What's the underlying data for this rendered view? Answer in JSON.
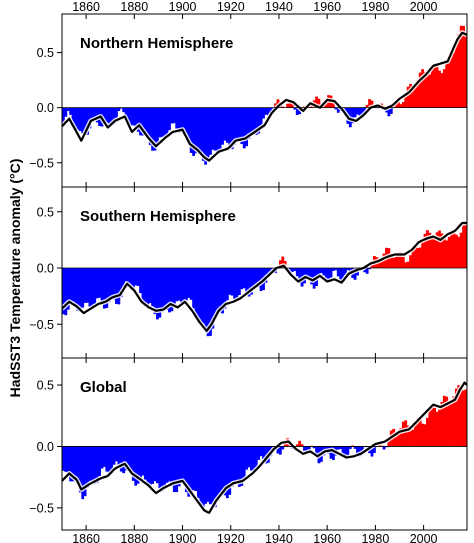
{
  "figure": {
    "y_axis_label": "HadSST3  Temperature anomaly (°C)",
    "colors": {
      "positive": "#ff0000",
      "negative": "#0000ff",
      "smoothed": "#000000",
      "uncertainty": "#ffffff"
    }
  },
  "chart_data": [
    {
      "type": "bar",
      "title": "Northern Hemisphere",
      "xlabel": "",
      "ylabel": "HadSST3  Temperature anomaly (°C)",
      "xlim": [
        1850,
        2018
      ],
      "ylim": [
        -0.72,
        0.85
      ],
      "x_ticks": [
        1860,
        1880,
        1900,
        1920,
        1940,
        1960,
        1980,
        2000
      ],
      "y_ticks": [
        -0.5,
        0.0,
        0.5
      ],
      "y_tick_labels": [
        "−0.5",
        "0.0",
        "0.5"
      ],
      "x_tick_labels_position": "top",
      "grid": false,
      "smoothed_anchors": [
        [
          1850,
          -0.17
        ],
        [
          1853,
          -0.1
        ],
        [
          1856,
          -0.22
        ],
        [
          1858,
          -0.3
        ],
        [
          1862,
          -0.12
        ],
        [
          1866,
          -0.08
        ],
        [
          1869,
          -0.18
        ],
        [
          1872,
          -0.12
        ],
        [
          1876,
          -0.08
        ],
        [
          1879,
          -0.22
        ],
        [
          1882,
          -0.16
        ],
        [
          1886,
          -0.28
        ],
        [
          1889,
          -0.35
        ],
        [
          1893,
          -0.27
        ],
        [
          1896,
          -0.22
        ],
        [
          1900,
          -0.2
        ],
        [
          1903,
          -0.33
        ],
        [
          1906,
          -0.38
        ],
        [
          1909,
          -0.45
        ],
        [
          1911,
          -0.48
        ],
        [
          1915,
          -0.4
        ],
        [
          1919,
          -0.37
        ],
        [
          1922,
          -0.3
        ],
        [
          1926,
          -0.28
        ],
        [
          1930,
          -0.22
        ],
        [
          1934,
          -0.16
        ],
        [
          1937,
          -0.05
        ],
        [
          1940,
          0.02
        ],
        [
          1943,
          0.07
        ],
        [
          1946,
          0.05
        ],
        [
          1950,
          -0.03
        ],
        [
          1953,
          0.04
        ],
        [
          1957,
          0.0
        ],
        [
          1960,
          0.07
        ],
        [
          1963,
          0.06
        ],
        [
          1966,
          -0.01
        ],
        [
          1969,
          -0.1
        ],
        [
          1972,
          -0.12
        ],
        [
          1975,
          -0.07
        ],
        [
          1978,
          0.0
        ],
        [
          1981,
          0.02
        ],
        [
          1984,
          -0.01
        ],
        [
          1987,
          0.02
        ],
        [
          1990,
          0.08
        ],
        [
          1994,
          0.14
        ],
        [
          1998,
          0.24
        ],
        [
          2001,
          0.3
        ],
        [
          2004,
          0.38
        ],
        [
          2007,
          0.4
        ],
        [
          2010,
          0.42
        ],
        [
          2012,
          0.52
        ],
        [
          2014,
          0.62
        ],
        [
          2016,
          0.68
        ],
        [
          2018,
          0.66
        ]
      ]
    },
    {
      "type": "bar",
      "title": "Southern Hemisphere",
      "xlabel": "",
      "ylabel": "HadSST3  Temperature anomaly (°C)",
      "xlim": [
        1850,
        2018
      ],
      "ylim": [
        -0.8,
        0.72
      ],
      "x_ticks": [
        1860,
        1880,
        1900,
        1920,
        1940,
        1960,
        1980,
        2000
      ],
      "y_ticks": [
        -0.5,
        0.0,
        0.5
      ],
      "y_tick_labels": [
        "−0.5",
        "0.0",
        "0.5"
      ],
      "grid": false,
      "smoothed_anchors": [
        [
          1850,
          -0.36
        ],
        [
          1853,
          -0.3
        ],
        [
          1856,
          -0.34
        ],
        [
          1859,
          -0.4
        ],
        [
          1862,
          -0.36
        ],
        [
          1865,
          -0.32
        ],
        [
          1868,
          -0.3
        ],
        [
          1871,
          -0.26
        ],
        [
          1874,
          -0.24
        ],
        [
          1877,
          -0.14
        ],
        [
          1880,
          -0.2
        ],
        [
          1883,
          -0.3
        ],
        [
          1886,
          -0.35
        ],
        [
          1889,
          -0.38
        ],
        [
          1892,
          -0.37
        ],
        [
          1895,
          -0.32
        ],
        [
          1898,
          -0.35
        ],
        [
          1901,
          -0.3
        ],
        [
          1904,
          -0.38
        ],
        [
          1907,
          -0.48
        ],
        [
          1910,
          -0.56
        ],
        [
          1912,
          -0.5
        ],
        [
          1915,
          -0.38
        ],
        [
          1918,
          -0.32
        ],
        [
          1921,
          -0.3
        ],
        [
          1924,
          -0.27
        ],
        [
          1927,
          -0.22
        ],
        [
          1930,
          -0.17
        ],
        [
          1933,
          -0.12
        ],
        [
          1936,
          -0.06
        ],
        [
          1939,
          0.0
        ],
        [
          1942,
          0.02
        ],
        [
          1945,
          -0.06
        ],
        [
          1948,
          -0.12
        ],
        [
          1951,
          -0.08
        ],
        [
          1954,
          -0.11
        ],
        [
          1957,
          -0.07
        ],
        [
          1960,
          -0.12
        ],
        [
          1963,
          -0.1
        ],
        [
          1966,
          -0.13
        ],
        [
          1969,
          -0.05
        ],
        [
          1972,
          -0.02
        ],
        [
          1975,
          0.0
        ],
        [
          1978,
          0.04
        ],
        [
          1981,
          0.06
        ],
        [
          1985,
          0.1
        ],
        [
          1988,
          0.12
        ],
        [
          1992,
          0.12
        ],
        [
          1995,
          0.16
        ],
        [
          1998,
          0.23
        ],
        [
          2001,
          0.26
        ],
        [
          2004,
          0.28
        ],
        [
          2007,
          0.25
        ],
        [
          2010,
          0.3
        ],
        [
          2013,
          0.33
        ],
        [
          2016,
          0.4
        ],
        [
          2018,
          0.4
        ]
      ]
    },
    {
      "type": "bar",
      "title": "Global",
      "xlabel": "",
      "ylabel": "HadSST3  Temperature anomaly (°C)",
      "xlim": [
        1850,
        2018
      ],
      "ylim": [
        -0.68,
        0.72
      ],
      "x_ticks": [
        1860,
        1880,
        1900,
        1920,
        1940,
        1960,
        1980,
        2000
      ],
      "y_ticks": [
        -0.5,
        0.0,
        0.5
      ],
      "y_tick_labels": [
        "−0.5",
        "0.0",
        "0.5"
      ],
      "x_tick_labels_position": "bottom",
      "grid": false,
      "smoothed_anchors": [
        [
          1850,
          -0.28
        ],
        [
          1853,
          -0.22
        ],
        [
          1856,
          -0.27
        ],
        [
          1858,
          -0.35
        ],
        [
          1862,
          -0.3
        ],
        [
          1866,
          -0.26
        ],
        [
          1869,
          -0.24
        ],
        [
          1872,
          -0.18
        ],
        [
          1876,
          -0.14
        ],
        [
          1879,
          -0.22
        ],
        [
          1882,
          -0.26
        ],
        [
          1886,
          -0.32
        ],
        [
          1889,
          -0.38
        ],
        [
          1892,
          -0.34
        ],
        [
          1896,
          -0.3
        ],
        [
          1900,
          -0.28
        ],
        [
          1903,
          -0.36
        ],
        [
          1906,
          -0.44
        ],
        [
          1909,
          -0.52
        ],
        [
          1911,
          -0.54
        ],
        [
          1914,
          -0.44
        ],
        [
          1918,
          -0.34
        ],
        [
          1921,
          -0.3
        ],
        [
          1925,
          -0.28
        ],
        [
          1929,
          -0.22
        ],
        [
          1932,
          -0.16
        ],
        [
          1935,
          -0.09
        ],
        [
          1938,
          -0.02
        ],
        [
          1941,
          0.03
        ],
        [
          1944,
          0.04
        ],
        [
          1947,
          -0.02
        ],
        [
          1950,
          -0.06
        ],
        [
          1953,
          -0.04
        ],
        [
          1956,
          -0.08
        ],
        [
          1959,
          -0.04
        ],
        [
          1962,
          -0.03
        ],
        [
          1965,
          -0.06
        ],
        [
          1968,
          -0.09
        ],
        [
          1971,
          -0.08
        ],
        [
          1974,
          -0.06
        ],
        [
          1977,
          -0.02
        ],
        [
          1980,
          0.02
        ],
        [
          1984,
          0.04
        ],
        [
          1987,
          0.08
        ],
        [
          1990,
          0.12
        ],
        [
          1994,
          0.14
        ],
        [
          1998,
          0.22
        ],
        [
          2001,
          0.28
        ],
        [
          2004,
          0.34
        ],
        [
          2007,
          0.32
        ],
        [
          2010,
          0.35
        ],
        [
          2013,
          0.38
        ],
        [
          2015,
          0.46
        ],
        [
          2017,
          0.52
        ],
        [
          2018,
          0.5
        ]
      ]
    }
  ]
}
